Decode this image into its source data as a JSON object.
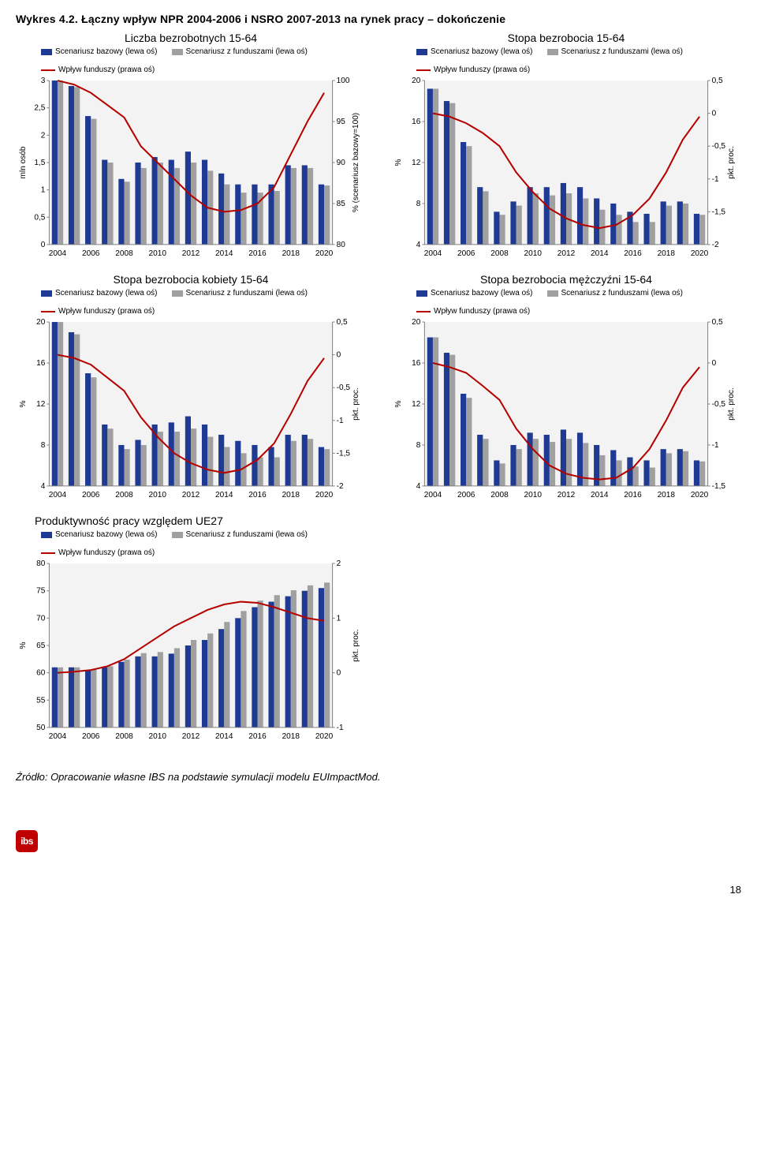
{
  "title_prefix": "Wykres 4.2.",
  "title_rest": " Łączny wpływ NPR 2004-2006 i NSRO 2007-2013 na rynek pracy – dokończenie",
  "years": [
    2004,
    2005,
    2006,
    2007,
    2008,
    2009,
    2010,
    2011,
    2012,
    2013,
    2014,
    2015,
    2016,
    2017,
    2018,
    2019,
    2020
  ],
  "year_labels": [
    "2004",
    "2006",
    "2008",
    "2010",
    "2012",
    "2014",
    "2016",
    "2018",
    "2020"
  ],
  "legend_labels": {
    "base": "Scenariusz bazowy (lewa oś)",
    "fund": "Scenariusz z funduszami (lewa oś)",
    "impact": "Wpływ funduszy (prawa oś)"
  },
  "colors": {
    "base": "#1f3a93",
    "fund": "#a0a0a0",
    "impact_line": "#b50000",
    "plot_bg": "#f3f3f3",
    "axis": "#808080"
  },
  "charts": {
    "unemp_count": {
      "subtitle": "Liczba bezrobotnych 15-64",
      "ylabel_left": "mln osób",
      "ylabel_right": "% (scenariusz bazowy=100)",
      "left_min": 0,
      "left_max": 3,
      "left_step": 0.5,
      "left_decimal": true,
      "right_min": 80,
      "right_max": 100,
      "right_step": 5,
      "base": [
        3.0,
        2.9,
        2.35,
        1.55,
        1.2,
        1.5,
        1.6,
        1.55,
        1.7,
        1.55,
        1.3,
        1.1,
        1.1,
        1.1,
        1.45,
        1.45,
        1.1
      ],
      "fund": [
        3.0,
        2.88,
        2.3,
        1.5,
        1.15,
        1.4,
        1.5,
        1.4,
        1.5,
        1.35,
        1.1,
        0.95,
        0.95,
        0.98,
        1.4,
        1.4,
        1.08
      ],
      "line": [
        100,
        99.5,
        98.5,
        97,
        95.5,
        92,
        90,
        88,
        86,
        84.5,
        84,
        84.2,
        85,
        87,
        91,
        95,
        98.5
      ]
    },
    "unemp_rate": {
      "subtitle": "Stopa bezrobocia 15-64",
      "ylabel_left": "%",
      "ylabel_right": "pkt. proc.",
      "left_min": 4,
      "left_max": 20,
      "left_step": 4,
      "right_min": -2,
      "right_max": 0.5,
      "right_step": 0.5,
      "right_decimal": true,
      "base": [
        19.2,
        18.0,
        14.0,
        9.6,
        7.2,
        8.2,
        9.6,
        9.6,
        10.0,
        9.6,
        8.5,
        8.0,
        7.2,
        7.0,
        8.2,
        8.2,
        7.0
      ],
      "fund": [
        19.2,
        17.8,
        13.6,
        9.2,
        6.9,
        7.8,
        9.0,
        8.8,
        9.0,
        8.5,
        7.4,
        6.9,
        6.2,
        6.2,
        7.8,
        8.0,
        6.9
      ],
      "line": [
        0,
        -0.05,
        -0.15,
        -0.3,
        -0.5,
        -0.9,
        -1.2,
        -1.45,
        -1.6,
        -1.7,
        -1.75,
        -1.7,
        -1.55,
        -1.3,
        -0.9,
        -0.4,
        -0.05
      ]
    },
    "unemp_women": {
      "subtitle": "Stopa bezrobocia kobiety 15-64",
      "ylabel_left": "%",
      "ylabel_right": "pkt. proc.",
      "left_min": 4,
      "left_max": 20,
      "left_step": 4,
      "right_min": -2,
      "right_max": 0.5,
      "right_step": 0.5,
      "right_decimal": true,
      "base": [
        20.0,
        19.0,
        15.0,
        10.0,
        8.0,
        8.5,
        10.0,
        10.2,
        10.8,
        10.0,
        9.0,
        8.4,
        8.0,
        7.8,
        9.0,
        9.0,
        7.8
      ],
      "fund": [
        20.0,
        18.8,
        14.6,
        9.6,
        7.6,
        8.0,
        9.3,
        9.3,
        9.6,
        8.8,
        7.8,
        7.2,
        6.8,
        6.8,
        8.4,
        8.6,
        7.6
      ],
      "line": [
        0,
        -0.05,
        -0.15,
        -0.35,
        -0.55,
        -0.95,
        -1.25,
        -1.5,
        -1.65,
        -1.75,
        -1.8,
        -1.75,
        -1.6,
        -1.35,
        -0.9,
        -0.4,
        -0.05
      ]
    },
    "unemp_men": {
      "subtitle": "Stopa bezrobocia mężczyźni 15-64",
      "ylabel_left": "%",
      "ylabel_right": "pkt. proc.",
      "left_min": 4,
      "left_max": 20,
      "left_step": 4,
      "right_min": -1.5,
      "right_max": 0.5,
      "right_step": 0.5,
      "right_decimal": true,
      "base": [
        18.5,
        17.0,
        13.0,
        9.0,
        6.5,
        8.0,
        9.2,
        9.0,
        9.5,
        9.2,
        8.0,
        7.5,
        6.8,
        6.5,
        7.6,
        7.6,
        6.5
      ],
      "fund": [
        18.5,
        16.8,
        12.6,
        8.6,
        6.2,
        7.6,
        8.6,
        8.3,
        8.6,
        8.2,
        7.0,
        6.5,
        5.9,
        5.8,
        7.2,
        7.4,
        6.4
      ],
      "line": [
        0,
        -0.05,
        -0.12,
        -0.28,
        -0.45,
        -0.8,
        -1.05,
        -1.25,
        -1.35,
        -1.4,
        -1.42,
        -1.4,
        -1.28,
        -1.05,
        -0.7,
        -0.3,
        -0.05
      ]
    },
    "productivity": {
      "subtitle": "Produktywność pracy względem UE27",
      "ylabel_left": "%",
      "ylabel_right": "pkt. proc.",
      "left_min": 50,
      "left_max": 80,
      "left_step": 5,
      "right_min": -1,
      "right_max": 2,
      "right_step": 1,
      "base": [
        61,
        61,
        60.5,
        61,
        62,
        63,
        63,
        63.5,
        65,
        66,
        68,
        70,
        72,
        73,
        74,
        75,
        75.5
      ],
      "fund": [
        61,
        61,
        60.6,
        61.2,
        62.4,
        63.6,
        63.8,
        64.5,
        66,
        67.2,
        69.3,
        71.3,
        73.2,
        74.2,
        75.1,
        76,
        76.5
      ],
      "line": [
        0,
        0.02,
        0.05,
        0.12,
        0.25,
        0.45,
        0.65,
        0.85,
        1.0,
        1.15,
        1.25,
        1.3,
        1.28,
        1.2,
        1.1,
        1.0,
        0.95
      ]
    }
  },
  "source_text": "Źródło: Opracowanie własne IBS na podstawie symulacji modelu EUImpactMod.",
  "page_number": "18",
  "logo_text": "ibs"
}
